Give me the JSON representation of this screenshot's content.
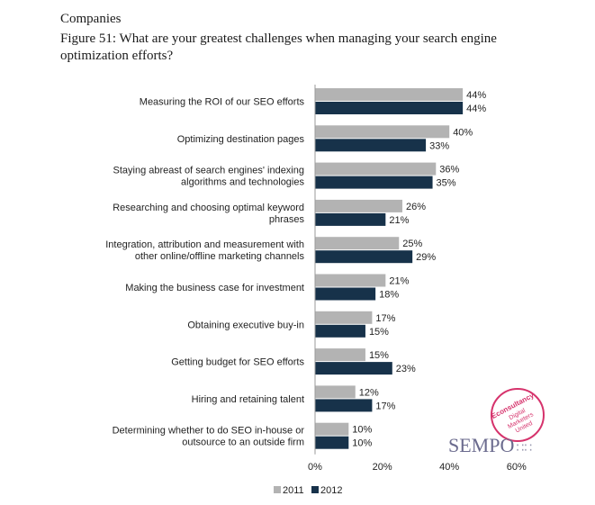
{
  "header": {
    "supertitle": "Companies",
    "title": "Figure 51: What are your greatest challenges when managing your search engine optimization efforts?"
  },
  "colors": {
    "series_2011": "#b3b3b3",
    "series_2012": "#17324a",
    "axis": "#999999",
    "badge": "#d6336c"
  },
  "chart_data": {
    "type": "bar",
    "orientation": "horizontal",
    "categories": [
      [
        "Measuring the ROI of our SEO efforts"
      ],
      [
        "Optimizing destination pages"
      ],
      [
        "Staying abreast of search engines' indexing",
        "algorithms and technologies"
      ],
      [
        "Researching and choosing optimal keyword",
        "phrases"
      ],
      [
        "Integration, attribution and measurement with",
        "other online/offline marketing channels"
      ],
      [
        "Making the business case for investment"
      ],
      [
        "Obtaining executive buy-in"
      ],
      [
        "Getting budget for SEO efforts"
      ],
      [
        "Hiring and retaining talent"
      ],
      [
        "Determining whether to do SEO in-house or",
        "outsource to an outside firm"
      ]
    ],
    "series": [
      {
        "name": "2011",
        "values": [
          44,
          40,
          36,
          26,
          25,
          21,
          17,
          15,
          12,
          10
        ]
      },
      {
        "name": "2012",
        "values": [
          44,
          33,
          35,
          21,
          29,
          18,
          15,
          23,
          17,
          10
        ]
      }
    ],
    "xlim": [
      0,
      60
    ],
    "xticks": [
      "0%",
      "20%",
      "40%",
      "60%"
    ],
    "value_suffix": "%",
    "legend": {
      "position": "bottom",
      "labels": [
        "2011",
        "2012"
      ]
    },
    "grid": false
  },
  "logos": {
    "badge_text": [
      "Econsultancy",
      "Digital",
      "Marketers",
      "United"
    ],
    "sempo_text": "SEMPO",
    "sempo_dots": "∷∷"
  }
}
